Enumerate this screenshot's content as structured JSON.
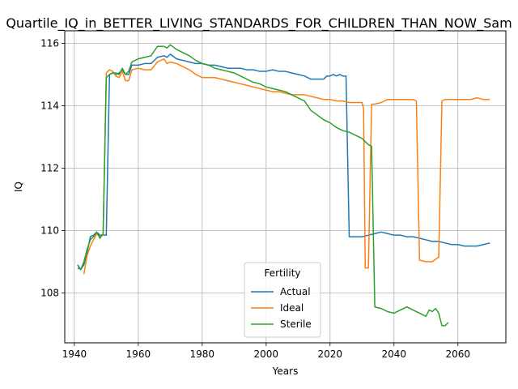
{
  "chart_data": {
    "type": "line",
    "title": "Quartile_IQ_in_BETTER_LIVING_STANDARDS_FOR_CHILDREN_THAN_NOW_Sam",
    "xlabel": "Years",
    "ylabel": "IQ",
    "xlim": [
      1937,
      2075
    ],
    "ylim": [
      106.4,
      116.4
    ],
    "xticks": [
      1940,
      1960,
      1980,
      2000,
      2020,
      2040,
      2060
    ],
    "yticks": [
      108,
      110,
      112,
      114,
      116
    ],
    "grid": true,
    "legend": {
      "title": "Fertility",
      "placement": "lower-center"
    },
    "series": [
      {
        "name": "Actual",
        "color": "#1f77b4",
        "points": [
          [
            1941,
            108.9
          ],
          [
            1942,
            108.75
          ],
          [
            1943,
            108.9
          ],
          [
            1944,
            109.3
          ],
          [
            1945,
            109.8
          ],
          [
            1946,
            109.85
          ],
          [
            1947,
            109.95
          ],
          [
            1948,
            109.85
          ],
          [
            1949,
            109.85
          ],
          [
            1950,
            109.85
          ],
          [
            1951,
            115.0
          ],
          [
            1952,
            115.05
          ],
          [
            1953,
            115.0
          ],
          [
            1954,
            115.05
          ],
          [
            1955,
            115.15
          ],
          [
            1956,
            115.0
          ],
          [
            1957,
            115.0
          ],
          [
            1958,
            115.3
          ],
          [
            1960,
            115.3
          ],
          [
            1962,
            115.35
          ],
          [
            1964,
            115.35
          ],
          [
            1966,
            115.55
          ],
          [
            1968,
            115.6
          ],
          [
            1969,
            115.55
          ],
          [
            1970,
            115.65
          ],
          [
            1972,
            115.5
          ],
          [
            1974,
            115.45
          ],
          [
            1976,
            115.4
          ],
          [
            1978,
            115.35
          ],
          [
            1980,
            115.35
          ],
          [
            1982,
            115.3
          ],
          [
            1984,
            115.3
          ],
          [
            1986,
            115.25
          ],
          [
            1988,
            115.2
          ],
          [
            1990,
            115.2
          ],
          [
            1992,
            115.2
          ],
          [
            1994,
            115.15
          ],
          [
            1996,
            115.15
          ],
          [
            1998,
            115.1
          ],
          [
            2000,
            115.1
          ],
          [
            2002,
            115.15
          ],
          [
            2004,
            115.1
          ],
          [
            2006,
            115.1
          ],
          [
            2008,
            115.05
          ],
          [
            2010,
            115.0
          ],
          [
            2012,
            114.95
          ],
          [
            2014,
            114.85
          ],
          [
            2016,
            114.85
          ],
          [
            2018,
            114.85
          ],
          [
            2019,
            114.95
          ],
          [
            2020,
            114.95
          ],
          [
            2021,
            115.0
          ],
          [
            2022,
            114.95
          ],
          [
            2023,
            115.0
          ],
          [
            2024,
            114.95
          ],
          [
            2025,
            114.95
          ],
          [
            2026,
            109.8
          ],
          [
            2028,
            109.8
          ],
          [
            2030,
            109.8
          ],
          [
            2032,
            109.85
          ],
          [
            2034,
            109.9
          ],
          [
            2036,
            109.95
          ],
          [
            2038,
            109.9
          ],
          [
            2040,
            109.85
          ],
          [
            2042,
            109.85
          ],
          [
            2044,
            109.8
          ],
          [
            2046,
            109.8
          ],
          [
            2048,
            109.75
          ],
          [
            2050,
            109.7
          ],
          [
            2052,
            109.65
          ],
          [
            2054,
            109.65
          ],
          [
            2056,
            109.6
          ],
          [
            2058,
            109.55
          ],
          [
            2060,
            109.55
          ],
          [
            2062,
            109.5
          ],
          [
            2064,
            109.5
          ],
          [
            2066,
            109.5
          ],
          [
            2068,
            109.55
          ],
          [
            2070,
            109.6
          ]
        ]
      },
      {
        "name": "Ideal",
        "color": "#ff7f0e",
        "points": [
          [
            1943,
            108.6
          ],
          [
            1944,
            109.2
          ],
          [
            1945,
            109.5
          ],
          [
            1946,
            109.7
          ],
          [
            1947,
            109.9
          ],
          [
            1948,
            109.8
          ],
          [
            1949,
            109.85
          ],
          [
            1950,
            115.05
          ],
          [
            1951,
            115.15
          ],
          [
            1952,
            115.1
          ],
          [
            1953,
            114.95
          ],
          [
            1954,
            114.9
          ],
          [
            1955,
            115.1
          ],
          [
            1956,
            114.8
          ],
          [
            1957,
            114.8
          ],
          [
            1958,
            115.15
          ],
          [
            1960,
            115.2
          ],
          [
            1962,
            115.15
          ],
          [
            1964,
            115.15
          ],
          [
            1966,
            115.4
          ],
          [
            1968,
            115.5
          ],
          [
            1969,
            115.35
          ],
          [
            1970,
            115.4
          ],
          [
            1972,
            115.35
          ],
          [
            1974,
            115.25
          ],
          [
            1976,
            115.15
          ],
          [
            1978,
            115.0
          ],
          [
            1980,
            114.9
          ],
          [
            1982,
            114.9
          ],
          [
            1984,
            114.9
          ],
          [
            1986,
            114.85
          ],
          [
            1988,
            114.8
          ],
          [
            1990,
            114.75
          ],
          [
            1992,
            114.7
          ],
          [
            1994,
            114.65
          ],
          [
            1996,
            114.6
          ],
          [
            1998,
            114.55
          ],
          [
            2000,
            114.5
          ],
          [
            2002,
            114.45
          ],
          [
            2004,
            114.45
          ],
          [
            2006,
            114.4
          ],
          [
            2008,
            114.35
          ],
          [
            2010,
            114.35
          ],
          [
            2012,
            114.35
          ],
          [
            2014,
            114.3
          ],
          [
            2016,
            114.25
          ],
          [
            2018,
            114.2
          ],
          [
            2020,
            114.2
          ],
          [
            2022,
            114.15
          ],
          [
            2024,
            114.15
          ],
          [
            2026,
            114.1
          ],
          [
            2028,
            114.1
          ],
          [
            2030,
            114.1
          ],
          [
            2030.5,
            113.9
          ],
          [
            2031,
            108.8
          ],
          [
            2032,
            108.8
          ],
          [
            2033,
            114.05
          ],
          [
            2034,
            114.05
          ],
          [
            2036,
            114.1
          ],
          [
            2038,
            114.2
          ],
          [
            2040,
            114.2
          ],
          [
            2042,
            114.2
          ],
          [
            2044,
            114.2
          ],
          [
            2046,
            114.2
          ],
          [
            2047,
            114.15
          ],
          [
            2048,
            109.05
          ],
          [
            2050,
            109.0
          ],
          [
            2052,
            109.0
          ],
          [
            2054,
            109.15
          ],
          [
            2055,
            114.15
          ],
          [
            2056,
            114.2
          ],
          [
            2058,
            114.2
          ],
          [
            2060,
            114.2
          ],
          [
            2062,
            114.2
          ],
          [
            2064,
            114.2
          ],
          [
            2066,
            114.25
          ],
          [
            2068,
            114.2
          ],
          [
            2070,
            114.2
          ]
        ]
      },
      {
        "name": "Sterile",
        "color": "#2ca02c",
        "points": [
          [
            1941,
            108.8
          ],
          [
            1942,
            108.75
          ],
          [
            1943,
            109.0
          ],
          [
            1944,
            109.4
          ],
          [
            1945,
            109.7
          ],
          [
            1946,
            109.8
          ],
          [
            1947,
            109.95
          ],
          [
            1948,
            109.75
          ],
          [
            1949,
            109.9
          ],
          [
            1950,
            114.9
          ],
          [
            1951,
            115.0
          ],
          [
            1952,
            115.05
          ],
          [
            1953,
            115.05
          ],
          [
            1954,
            115.0
          ],
          [
            1955,
            115.2
          ],
          [
            1956,
            115.0
          ],
          [
            1957,
            115.1
          ],
          [
            1958,
            115.4
          ],
          [
            1960,
            115.5
          ],
          [
            1962,
            115.55
          ],
          [
            1964,
            115.6
          ],
          [
            1966,
            115.9
          ],
          [
            1968,
            115.9
          ],
          [
            1969,
            115.85
          ],
          [
            1970,
            115.95
          ],
          [
            1972,
            115.8
          ],
          [
            1974,
            115.7
          ],
          [
            1976,
            115.6
          ],
          [
            1978,
            115.45
          ],
          [
            1980,
            115.35
          ],
          [
            1982,
            115.3
          ],
          [
            1984,
            115.2
          ],
          [
            1986,
            115.15
          ],
          [
            1988,
            115.1
          ],
          [
            1990,
            115.05
          ],
          [
            1992,
            114.95
          ],
          [
            1994,
            114.85
          ],
          [
            1996,
            114.75
          ],
          [
            1998,
            114.7
          ],
          [
            2000,
            114.6
          ],
          [
            2002,
            114.55
          ],
          [
            2004,
            114.5
          ],
          [
            2006,
            114.45
          ],
          [
            2008,
            114.35
          ],
          [
            2010,
            114.25
          ],
          [
            2012,
            114.15
          ],
          [
            2014,
            113.85
          ],
          [
            2016,
            113.7
          ],
          [
            2018,
            113.55
          ],
          [
            2020,
            113.45
          ],
          [
            2022,
            113.3
          ],
          [
            2024,
            113.2
          ],
          [
            2026,
            113.15
          ],
          [
            2028,
            113.05
          ],
          [
            2030,
            112.95
          ],
          [
            2032,
            112.75
          ],
          [
            2033,
            112.7
          ],
          [
            2034,
            107.55
          ],
          [
            2036,
            107.5
          ],
          [
            2038,
            107.4
          ],
          [
            2040,
            107.35
          ],
          [
            2042,
            107.45
          ],
          [
            2044,
            107.55
          ],
          [
            2046,
            107.45
          ],
          [
            2048,
            107.35
          ],
          [
            2050,
            107.25
          ],
          [
            2051,
            107.45
          ],
          [
            2052,
            107.4
          ],
          [
            2053,
            107.5
          ],
          [
            2054,
            107.35
          ],
          [
            2055,
            106.95
          ],
          [
            2056,
            106.95
          ],
          [
            2057,
            107.05
          ]
        ]
      }
    ]
  }
}
